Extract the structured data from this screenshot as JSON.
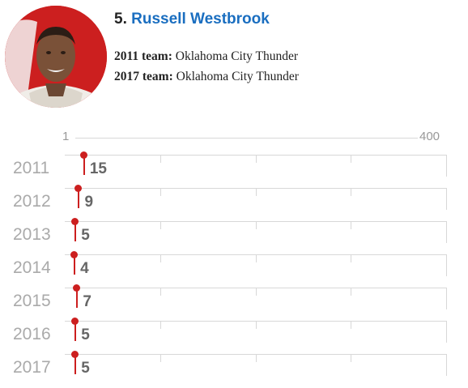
{
  "player": {
    "rank": "5.",
    "name": "Russell Westbrook"
  },
  "teams": {
    "t2011_label": "2011 team:",
    "t2011_value": "Oklahoma City Thunder",
    "t2017_label": "2017 team:",
    "t2017_value": "Oklahoma City Thunder"
  },
  "scale": {
    "min_label": "1",
    "max_label": "400",
    "min": 1,
    "max": 400
  },
  "chart_data": {
    "type": "dot-plot",
    "categories": [
      "2011",
      "2012",
      "2013",
      "2014",
      "2015",
      "2016",
      "2017"
    ],
    "values": [
      15,
      9,
      5,
      4,
      7,
      5,
      5
    ],
    "xlim": [
      1,
      400
    ],
    "grid": true
  },
  "colors": {
    "accent": "#cc1f1f",
    "name": "#1a6ec0"
  }
}
